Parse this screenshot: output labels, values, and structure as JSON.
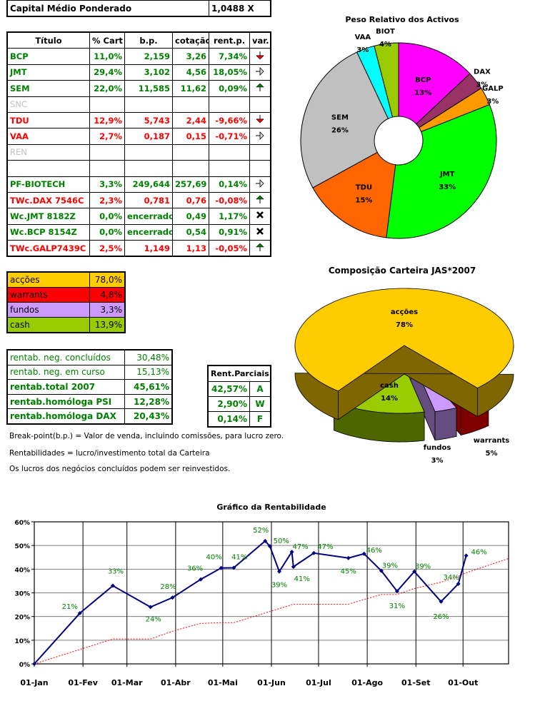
{
  "capital": {
    "label": "Capital Médio Ponderado",
    "value": "1,0488 X"
  },
  "titles_table": {
    "headers": [
      "Título",
      "% Cart",
      "b.p.",
      "cotação",
      "rent.p.",
      "var."
    ],
    "rows": [
      {
        "titulo": "BCP",
        "cart": "11,0%",
        "bp": "2,159",
        "cotacao": "3,26",
        "rent": "7,34%",
        "var": "arrow-down-icon",
        "color": "#008000"
      },
      {
        "titulo": "JMT",
        "cart": "29,4%",
        "bp": "3,102",
        "cotacao": "4,56",
        "rent": "18,05%",
        "var": "arrow-right-icon",
        "color": "#008000"
      },
      {
        "titulo": "SEM",
        "cart": "22,0%",
        "bp": "11,585",
        "cotacao": "11,62",
        "rent": "0,09%",
        "var": "arrow-up-icon",
        "color": "#008000"
      },
      {
        "titulo": "SNC",
        "cart": "",
        "bp": "",
        "cotacao": "",
        "rent": "",
        "var": "",
        "color": "#C0C0C0"
      },
      {
        "titulo": "TDU",
        "cart": "12,9%",
        "bp": "5,743",
        "cotacao": "2,44",
        "rent": "-9,66%",
        "var": "arrow-down-icon",
        "color": "#FF0000"
      },
      {
        "titulo": "VAA",
        "cart": "2,7%",
        "bp": "0,187",
        "cotacao": "0,15",
        "rent": "-0,71%",
        "var": "arrow-right-icon",
        "color": "#FF0000"
      },
      {
        "titulo": "REN",
        "cart": "",
        "bp": "",
        "cotacao": "",
        "rent": "",
        "var": "",
        "color": "#C0C0C0"
      },
      {
        "titulo": "",
        "cart": "",
        "bp": "",
        "cotacao": "",
        "rent": "",
        "var": "",
        "color": "#000000"
      },
      {
        "titulo": "PF-BIOTECH",
        "cart": "3,3%",
        "bp": "249,644",
        "cotacao": "257,69",
        "rent": "0,14%",
        "var": "arrow-right-icon",
        "color": "#008000"
      },
      {
        "titulo": "TWc.DAX 7546C",
        "cart": "2,3%",
        "bp": "0,781",
        "cotacao": "0,76",
        "rent": "-0,08%",
        "var": "arrow-up-icon",
        "color": "#FF0000"
      },
      {
        "titulo": "Wc.JMT 8182Z",
        "cart": "0,0%",
        "bp": "encerrado",
        "cotacao": "0,49",
        "rent": "1,17%",
        "var": "x-icon",
        "color": "#008000"
      },
      {
        "titulo": "Wc.BCP 8154Z",
        "cart": "0,0%",
        "bp": "encerrado",
        "cotacao": "0,54",
        "rent": "0,91%",
        "var": "x-icon",
        "color": "#008000"
      },
      {
        "titulo": "TWc.GALP7439C",
        "cart": "2,5%",
        "bp": "1,149",
        "cotacao": "1,13",
        "rent": "-0,05%",
        "var": "arrow-up-icon",
        "color": "#FF0000"
      }
    ]
  },
  "composition_table": [
    {
      "label": "acções",
      "value": "78,0%",
      "color": "#FFCC00"
    },
    {
      "label": "warrants",
      "value": "4,8%",
      "color": "#FF0000"
    },
    {
      "label": "fundos",
      "value": "3,3%",
      "color": "#CC99FF"
    },
    {
      "label": "cash",
      "value": "13,9%",
      "color": "#99CC00"
    }
  ],
  "rentab_table": [
    {
      "label": "rentab. neg. concluídos",
      "value": "30,48%",
      "bold": false
    },
    {
      "label": "rentab. neg. em curso",
      "value": "15,13%",
      "bold": false
    },
    {
      "label": "rentab.total 2007",
      "value": "45,61%",
      "bold": true
    },
    {
      "label": "rentab.homóloga PSI",
      "value": "12,28%",
      "bold": true
    },
    {
      "label": "rentab.homóloga DAX",
      "value": "20,43%",
      "bold": true
    }
  ],
  "rent_parciais": {
    "header": "Rent.Parciais",
    "rows": [
      {
        "value": "42,57%",
        "code": "A"
      },
      {
        "value": "2,90%",
        "code": "W"
      },
      {
        "value": "0,14%",
        "code": "F"
      }
    ]
  },
  "notes": [
    "Break-point(b.p.) = Valor de venda, incluindo comissões, para lucro zero.",
    "Rentabilidades = lucro/investimento total da Carteira",
    "Os lucros dos negócios concluídos podem ser reinvestidos."
  ],
  "chart_data": [
    {
      "type": "pie",
      "variant": "doughnut",
      "title": "Peso Relativo dos Activos",
      "slices": [
        {
          "label": "BCP",
          "value": 13,
          "display": "13%",
          "color": "#FF00FF"
        },
        {
          "label": "DAX",
          "value": 3,
          "display": "3%",
          "color": "#993366"
        },
        {
          "label": "GALP",
          "value": 3,
          "display": "3%",
          "color": "#FF9900"
        },
        {
          "label": "JMT",
          "value": 33,
          "display": "33%",
          "color": "#00FF00"
        },
        {
          "label": "TDU",
          "value": 15,
          "display": "15%",
          "color": "#FF6600"
        },
        {
          "label": "SEM",
          "value": 26,
          "display": "26%",
          "color": "#C0C0C0"
        },
        {
          "label": "VAA",
          "value": 3,
          "display": "3%",
          "color": "#00FFFF"
        },
        {
          "label": "BIOT",
          "value": 4,
          "display": "4%",
          "color": "#99CC00"
        }
      ]
    },
    {
      "type": "pie",
      "variant": "3d-exploded",
      "title": "Composição Carteira JAS*2007",
      "slices": [
        {
          "label": "warrants",
          "value": 4.8,
          "display": "5%",
          "color": "#FF0000",
          "side": "#800000"
        },
        {
          "label": "fundos",
          "value": 3.3,
          "display": "3%",
          "color": "#CC99FF",
          "side": "#664D80"
        },
        {
          "label": "cash",
          "value": 13.9,
          "display": "14%",
          "color": "#99CC00",
          "side": "#4D6600"
        },
        {
          "label": "acções",
          "value": 78.0,
          "display": "78%",
          "color": "#FFCC00",
          "side": "#806600"
        }
      ]
    },
    {
      "type": "line",
      "title": "Gráfico da Rentabilidade",
      "xlim": [
        "2007-01-01",
        "2007-10-30"
      ],
      "ylim": [
        0,
        60
      ],
      "yticks": [
        "0%",
        "10%",
        "20%",
        "30%",
        "40%",
        "50%",
        "60%"
      ],
      "xticks": [
        {
          "date": "2007-01-01",
          "label": "01-Jan"
        },
        {
          "date": "2007-02-01",
          "label": "01-Fev"
        },
        {
          "date": "2007-03-01",
          "label": "01-Mar"
        },
        {
          "date": "2007-04-01",
          "label": "01-Abr"
        },
        {
          "date": "2007-05-01",
          "label": "01-Mai"
        },
        {
          "date": "2007-06-01",
          "label": "01-Jun"
        },
        {
          "date": "2007-07-01",
          "label": "01-Jul"
        },
        {
          "date": "2007-08-01",
          "label": "01-Ago"
        },
        {
          "date": "2007-09-01",
          "label": "01-Set"
        },
        {
          "date": "2007-10-01",
          "label": "01-Out"
        }
      ],
      "grid": true,
      "series": [
        {
          "style": "solid-markers",
          "color": "#000080",
          "label_color": "#008000",
          "points": [
            [
              "2007-01-01",
              0
            ],
            [
              "2007-01-30",
              21.4
            ],
            [
              "2007-02-20",
              33
            ],
            [
              "2007-03-16",
              24
            ],
            [
              "2007-03-30",
              28
            ],
            [
              "2007-04-17",
              35.7
            ],
            [
              "2007-04-30",
              40.5
            ],
            [
              "2007-05-08",
              40.6
            ],
            [
              "2007-05-28",
              51.9
            ],
            [
              "2007-05-31",
              49.7
            ],
            [
              "2007-06-06",
              39
            ],
            [
              "2007-06-14",
              47.3
            ],
            [
              "2007-06-15",
              41
            ],
            [
              "2007-06-28",
              46.8
            ],
            [
              "2007-07-20",
              44.7
            ],
            [
              "2007-07-30",
              46.5
            ],
            [
              "2007-08-10",
              39.3
            ],
            [
              "2007-08-20",
              30.7
            ],
            [
              "2007-08-31",
              39
            ],
            [
              "2007-09-17",
              26.3
            ],
            [
              "2007-09-28",
              33.8
            ],
            [
              "2007-10-03",
              45.7
            ]
          ],
          "labels": [
            "",
            "21%",
            "33%",
            "24%",
            "28%",
            "36%",
            "40%",
            "41%",
            "52%",
            "50%",
            "39%",
            "47%",
            "41%",
            "47%",
            "45%",
            "46%",
            "39%",
            "31%",
            "39%",
            "26%",
            "34%",
            "46%"
          ]
        },
        {
          "style": "dotted",
          "color": "#FF0000",
          "points": [
            [
              "2007-01-01",
              0
            ],
            [
              "2007-02-01",
              6.5
            ],
            [
              "2007-02-20",
              10.5
            ],
            [
              "2007-03-16",
              10.5
            ],
            [
              "2007-03-31",
              14
            ],
            [
              "2007-04-17",
              17.1
            ],
            [
              "2007-04-30",
              17.4
            ],
            [
              "2007-05-08",
              17.4
            ],
            [
              "2007-05-28",
              21.5
            ],
            [
              "2007-06-15",
              25.2
            ],
            [
              "2007-06-28",
              25.2
            ],
            [
              "2007-07-20",
              25.2
            ],
            [
              "2007-07-30",
              27.2
            ],
            [
              "2007-08-10",
              29.3
            ],
            [
              "2007-08-20",
              29.3
            ],
            [
              "2007-08-31",
              31.8
            ],
            [
              "2007-09-17",
              34.5
            ],
            [
              "2007-09-28",
              37
            ],
            [
              "2007-10-03",
              38.5
            ],
            [
              "2007-10-30",
              44.5
            ]
          ]
        }
      ]
    }
  ]
}
